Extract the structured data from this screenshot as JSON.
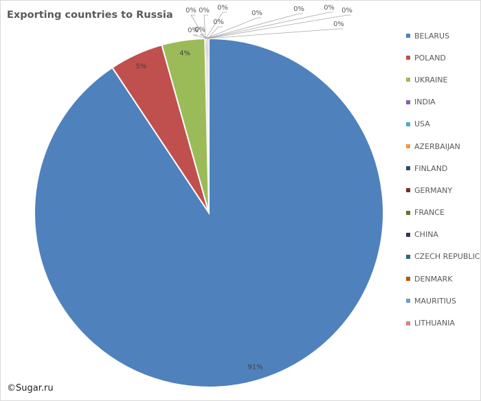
{
  "chart_data": {
    "type": "pie",
    "title": "Exporting countries to Russia",
    "legend_position": "right",
    "slices": [
      {
        "name": "BELARUS",
        "value": 91,
        "label": "91%",
        "color": "#4f81bd"
      },
      {
        "name": "POLAND",
        "value": 5,
        "label": "5%",
        "color": "#c0504d"
      },
      {
        "name": "UKRAINE",
        "value": 4,
        "label": "4%",
        "color": "#9bbb59"
      },
      {
        "name": "INDIA",
        "value": 0,
        "label": "0%",
        "color": "#8064a2"
      },
      {
        "name": "USA",
        "value": 0,
        "label": "0%",
        "color": "#4bacc6"
      },
      {
        "name": "AZERBAIJAN",
        "value": 0,
        "label": "0%",
        "color": "#f79646"
      },
      {
        "name": "FINLAND",
        "value": 0,
        "label": "0%",
        "color": "#2c4d75"
      },
      {
        "name": "GERMANY",
        "value": 0,
        "label": "0%",
        "color": "#772c2a"
      },
      {
        "name": "FRANCE",
        "value": 0,
        "label": "0%",
        "color": "#5f7530"
      },
      {
        "name": "CHINA",
        "value": 0,
        "label": "0%",
        "color": "#403152"
      },
      {
        "name": "CZECH REPUBLIC",
        "value": 0,
        "label": "0%",
        "color": "#276a7c"
      },
      {
        "name": "DENMARK",
        "value": 0,
        "label": "0%",
        "color": "#b65708"
      },
      {
        "name": "MAURITIUS",
        "value": 0,
        "label": "0%",
        "color": "#729aca"
      },
      {
        "name": "LITHUANIA",
        "value": 0,
        "label": "0%",
        "color": "#d9817f"
      }
    ]
  },
  "credit": "©Sugar.ru"
}
